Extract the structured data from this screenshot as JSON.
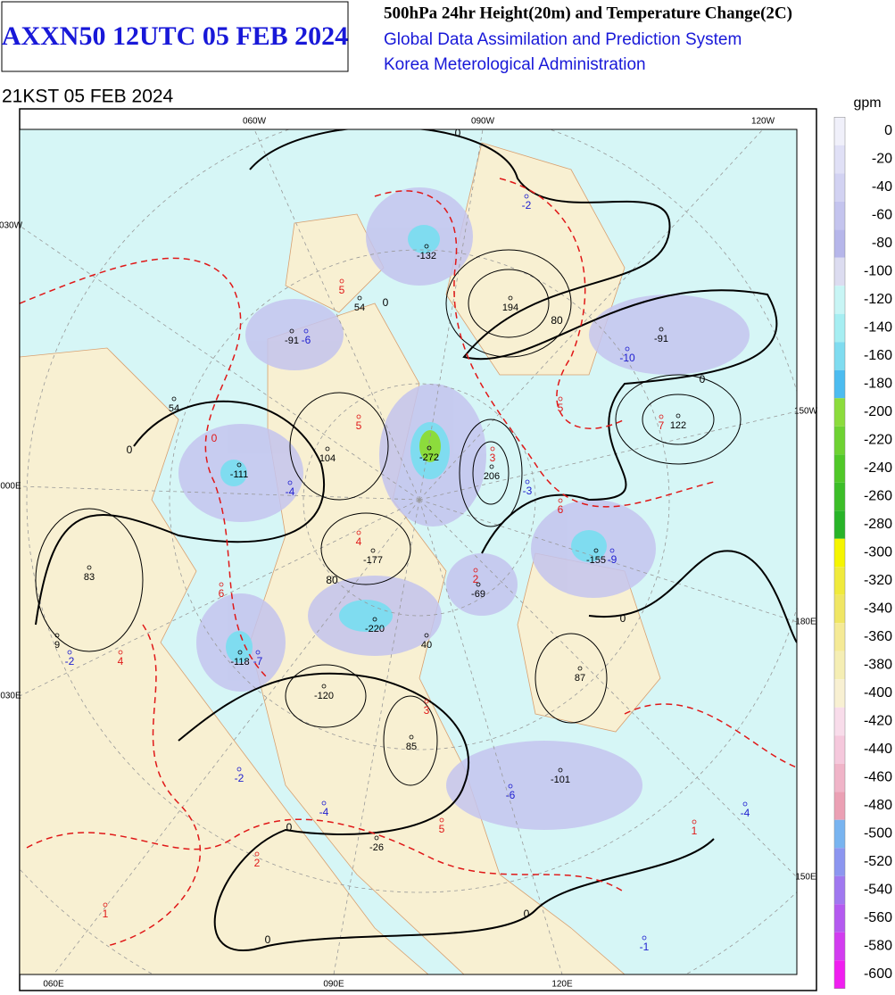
{
  "header": {
    "product": "AXXN50 12UTC 05 FEB 2024",
    "title": "500hPa 24hr Height(20m) and Temperature Change(2C)",
    "system": "Global Data Assimilation and Prediction System",
    "agency": "Korea Meterological Administration",
    "valid_time": "21KST 05 FEB 2024"
  },
  "colorbar": {
    "unit": "gpm",
    "levels": [
      0,
      -20,
      -40,
      -60,
      -80,
      -100,
      -120,
      -140,
      -160,
      -180,
      -200,
      -220,
      -240,
      -260,
      -280,
      -300,
      -320,
      -340,
      -360,
      -380,
      -400,
      -420,
      -440,
      -460,
      -480,
      -500,
      -520,
      -540,
      -560,
      -580,
      -600
    ],
    "colors": [
      "#f0f0fa",
      "#e0e0f6",
      "#d2d2f2",
      "#c4c4ee",
      "#b6b6ea",
      "#dcdcf0",
      "#c8f5f5",
      "#a6eef2",
      "#7fdcf0",
      "#4cbcf0",
      "#8cdc3c",
      "#6ed232",
      "#50c828",
      "#3cbe28",
      "#28b428",
      "#f5f500",
      "#f0ea3c",
      "#f0e664",
      "#f5ea96",
      "#f5eeb4",
      "#f8f0d2",
      "#f8dcea",
      "#f5c8dc",
      "#f0b4c8",
      "#eba0b4",
      "#78b4f0",
      "#8c96f0",
      "#a078f0",
      "#b45af0",
      "#d23cf0",
      "#f01ef0"
    ]
  },
  "lon_labels": [
    "060W",
    "090W",
    "120W",
    "030W",
    "150W",
    "000E",
    "180E",
    "030E",
    "150E",
    "060E",
    "090E",
    "120E"
  ],
  "height_centers": [
    -132,
    194,
    54,
    -91,
    -91,
    54,
    122,
    -111,
    104,
    -272,
    206,
    -177,
    83,
    -155,
    -69,
    -220,
    40,
    9,
    -118,
    87,
    -120,
    85,
    -101,
    -26
  ],
  "temperature_centers": [
    -2,
    5,
    -6,
    -10,
    5,
    5,
    7,
    -4,
    3,
    -3,
    6,
    4,
    -9,
    2,
    6,
    -2,
    4,
    -7,
    3,
    -2,
    -4,
    -6,
    5,
    2,
    1,
    1,
    -4,
    -1
  ],
  "contour_labels": [
    0,
    80,
    0,
    0,
    80,
    0,
    0,
    0,
    0,
    0,
    0
  ]
}
